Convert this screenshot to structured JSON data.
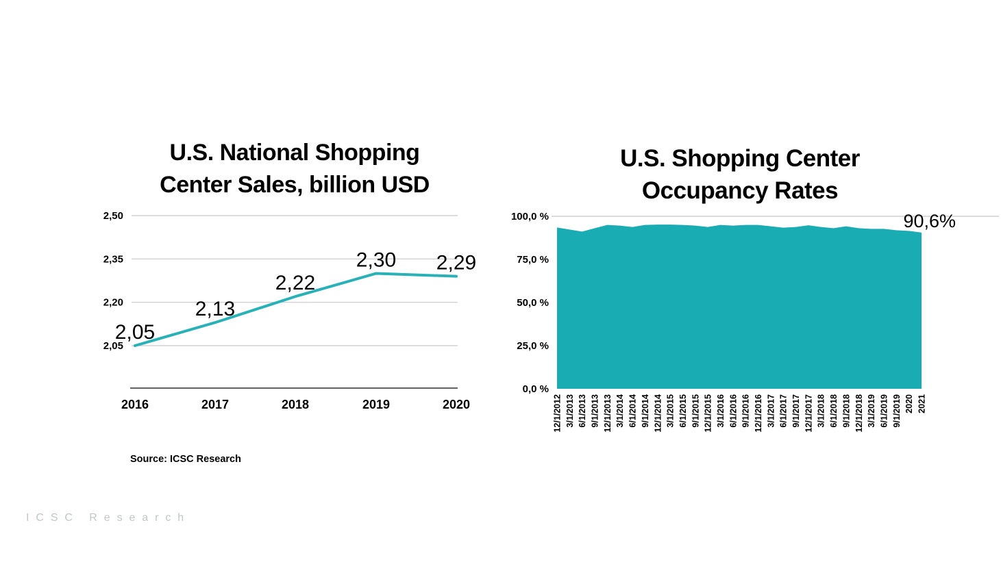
{
  "watermark": "ICSC Research",
  "chart_data": [
    {
      "type": "line",
      "title": "U.S. National Shopping Center Sales, billion USD",
      "title_lines": [
        "U.S. National Shopping",
        "Center Sales, billion USD"
      ],
      "categories": [
        "2016",
        "2017",
        "2018",
        "2019",
        "2020"
      ],
      "values": [
        2.05,
        2.13,
        2.22,
        2.3,
        2.29
      ],
      "data_labels": [
        "2,05",
        "2,13",
        "2,22",
        "2,30",
        "2,29"
      ],
      "y_tick_labels": [
        "2,50",
        "2,35",
        "2,20",
        "2,05"
      ],
      "y_tick_values": [
        2.5,
        2.35,
        2.2,
        2.05
      ],
      "ylim": [
        2.05,
        2.5
      ],
      "grid": true,
      "legend": "none",
      "line_color": "#29b1b8",
      "source": "Source: ICSC Research"
    },
    {
      "type": "area",
      "title": "U.S. Shopping Center Occupancy Rates",
      "title_lines": [
        "U.S. Shopping Center",
        "Occupancy Rates"
      ],
      "categories": [
        "12/1/2012",
        "3/1/2013",
        "6/1/2013",
        "9/1/2013",
        "12/1/2013",
        "3/1/2014",
        "6/1/2014",
        "9/1/2014",
        "12/1/2014",
        "3/1/2015",
        "6/1/2015",
        "9/1/2015",
        "12/1/2015",
        "3/1/2016",
        "6/1/2016",
        "9/1/2016",
        "12/1/2016",
        "3/1/2017",
        "6/1/2017",
        "9/1/2017",
        "12/1/2017",
        "3/1/2018",
        "6/1/2018",
        "9/1/2018",
        "12/1/2018",
        "3/1/2019",
        "6/1/2019",
        "9/1/2019",
        "2020",
        "2021"
      ],
      "values": [
        93.5,
        92.3,
        91.1,
        93.1,
        95.0,
        94.6,
        93.8,
        95.0,
        95.2,
        95.2,
        95.0,
        94.6,
        93.8,
        95.0,
        94.6,
        95.0,
        95.0,
        94.2,
        93.4,
        93.8,
        94.8,
        93.8,
        93.1,
        94.2,
        93.1,
        92.7,
        92.7,
        91.9,
        91.5,
        90.6
      ],
      "y_tick_labels": [
        "100,0 %",
        "75,0 %",
        "50,0 %",
        "25,0 %",
        "0,0 %"
      ],
      "y_tick_values": [
        100,
        75,
        50,
        25,
        0
      ],
      "ylim": [
        0,
        100
      ],
      "grid": "top-only",
      "legend": "none",
      "fill_color": "#1aacb3",
      "annotation": "90,6%",
      "annotation_value": 90.6
    }
  ]
}
